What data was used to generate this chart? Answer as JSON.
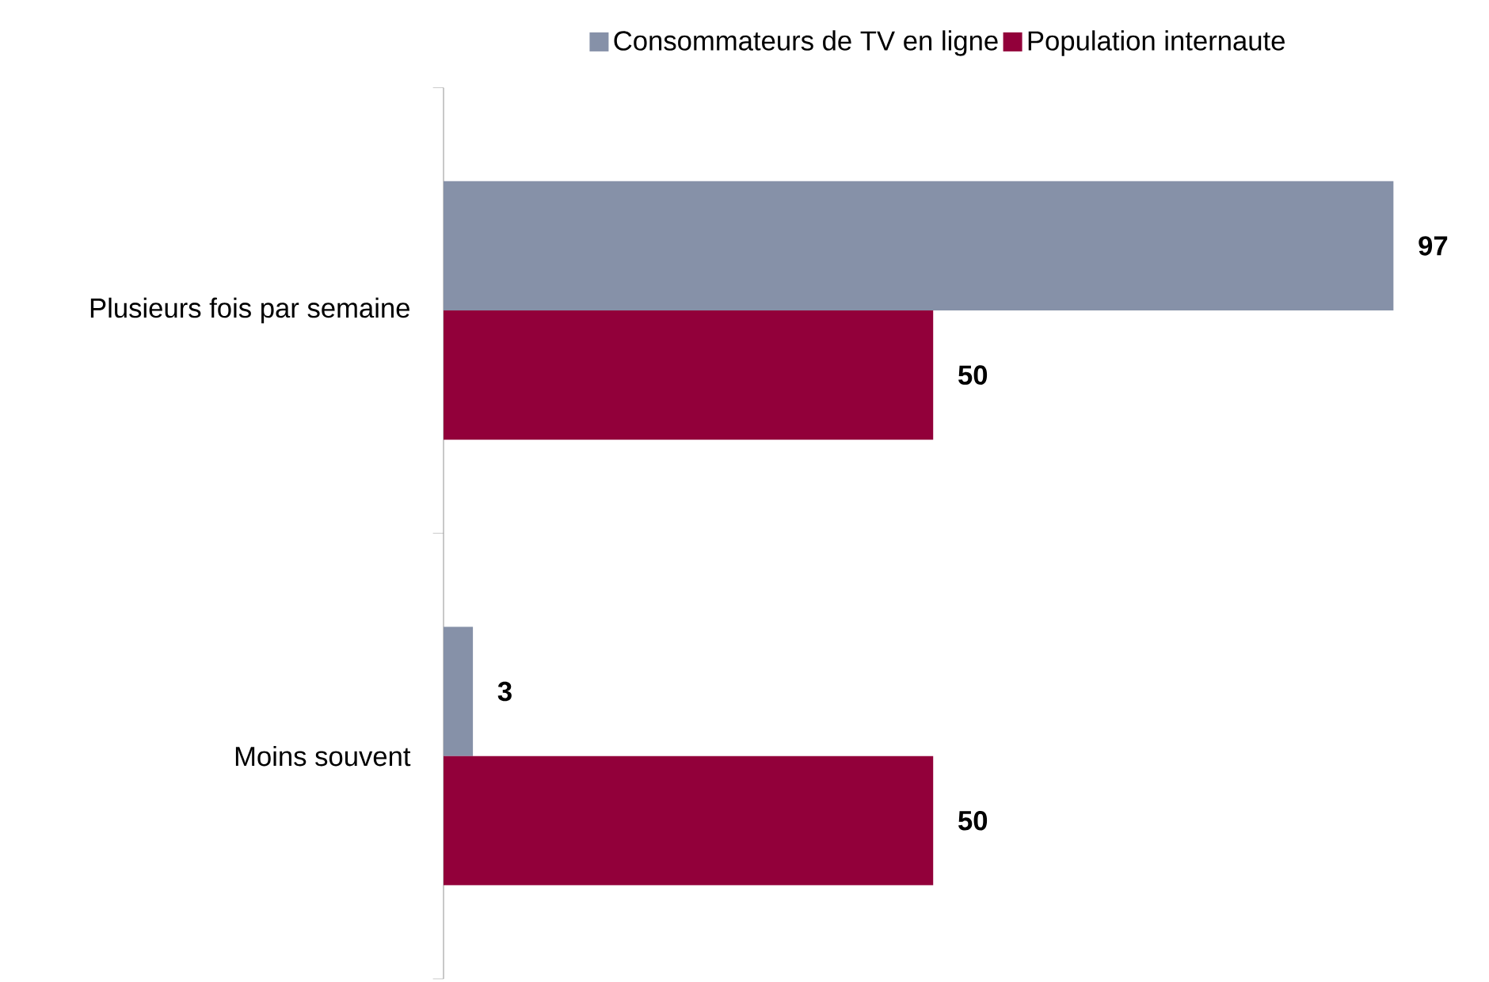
{
  "chart_data": {
    "type": "bar",
    "orientation": "horizontal",
    "categories": [
      "Plusieurs fois par semaine",
      "Moins souvent"
    ],
    "series": [
      {
        "name": "Consommateurs de TV en ligne",
        "color": "#8691a8",
        "values": [
          97,
          3
        ]
      },
      {
        "name": "Population internaute",
        "color": "#92003a",
        "values": [
          50,
          50
        ]
      }
    ],
    "data_labels": true,
    "legend": "top"
  }
}
